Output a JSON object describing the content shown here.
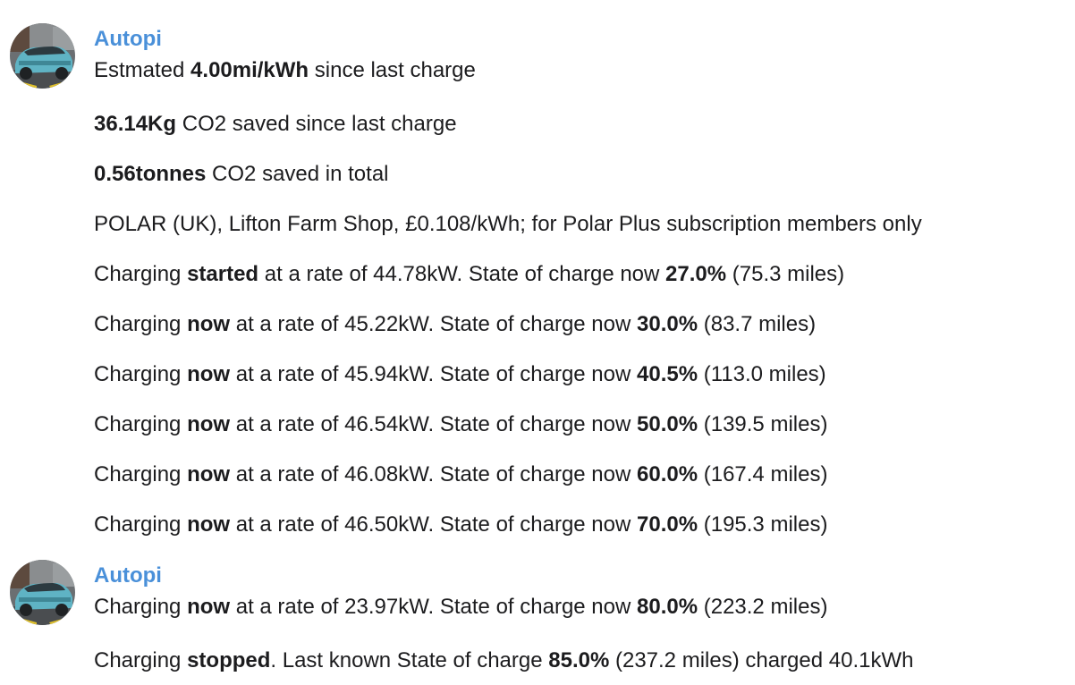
{
  "groups": [
    {
      "sender": "Autopi",
      "avatar_icon": "car-avatar-icon",
      "messages": [
        {
          "parts": [
            {
              "t": "Estmated "
            },
            {
              "t": "4.00mi/kWh",
              "b": true
            },
            {
              "t": " since last charge"
            }
          ]
        },
        {
          "parts": [
            {
              "t": "36.14Kg",
              "b": true
            },
            {
              "t": " CO2 saved since last charge"
            }
          ]
        },
        {
          "parts": [
            {
              "t": "0.56tonnes",
              "b": true
            },
            {
              "t": " CO2 saved in total"
            }
          ]
        },
        {
          "parts": [
            {
              "t": "POLAR (UK), Lifton Farm Shop, £0.108/kWh; for Polar Plus subscription members only"
            }
          ]
        },
        {
          "parts": [
            {
              "t": "Charging "
            },
            {
              "t": "started",
              "b": true
            },
            {
              "t": " at a rate of 44.78kW. State of charge now "
            },
            {
              "t": "27.0%",
              "b": true
            },
            {
              "t": " (75.3 miles)"
            }
          ]
        },
        {
          "parts": [
            {
              "t": "Charging "
            },
            {
              "t": "now",
              "b": true
            },
            {
              "t": " at a rate of 45.22kW. State of charge now "
            },
            {
              "t": "30.0%",
              "b": true
            },
            {
              "t": " (83.7 miles)"
            }
          ]
        },
        {
          "parts": [
            {
              "t": "Charging "
            },
            {
              "t": "now",
              "b": true
            },
            {
              "t": " at a rate of 45.94kW. State of charge now "
            },
            {
              "t": "40.5%",
              "b": true
            },
            {
              "t": " (113.0 miles)"
            }
          ]
        },
        {
          "parts": [
            {
              "t": "Charging "
            },
            {
              "t": "now",
              "b": true
            },
            {
              "t": " at a rate of 46.54kW. State of charge now "
            },
            {
              "t": "50.0%",
              "b": true
            },
            {
              "t": " (139.5 miles)"
            }
          ]
        },
        {
          "parts": [
            {
              "t": "Charging "
            },
            {
              "t": "now",
              "b": true
            },
            {
              "t": " at a rate of 46.08kW. State of charge now "
            },
            {
              "t": "60.0%",
              "b": true
            },
            {
              "t": " (167.4 miles)"
            }
          ]
        },
        {
          "parts": [
            {
              "t": "Charging "
            },
            {
              "t": "now",
              "b": true
            },
            {
              "t": " at a rate of 46.50kW. State of charge now "
            },
            {
              "t": "70.0%",
              "b": true
            },
            {
              "t": " (195.3 miles)"
            }
          ]
        }
      ]
    },
    {
      "sender": "Autopi",
      "avatar_icon": "car-avatar-icon",
      "messages": [
        {
          "parts": [
            {
              "t": "Charging "
            },
            {
              "t": "now",
              "b": true
            },
            {
              "t": " at a rate of 23.97kW. State of charge now "
            },
            {
              "t": "80.0%",
              "b": true
            },
            {
              "t": " (223.2 miles)"
            }
          ]
        },
        {
          "parts": [
            {
              "t": "Charging "
            },
            {
              "t": "stopped",
              "b": true
            },
            {
              "t": ". Last known State of charge "
            },
            {
              "t": "85.0%",
              "b": true
            },
            {
              "t": " (237.2 miles) charged 40.1kWh"
            }
          ]
        }
      ]
    }
  ],
  "colors": {
    "sender": "#4a90d9",
    "text": "#1c1c1e",
    "background": "#ffffff"
  }
}
